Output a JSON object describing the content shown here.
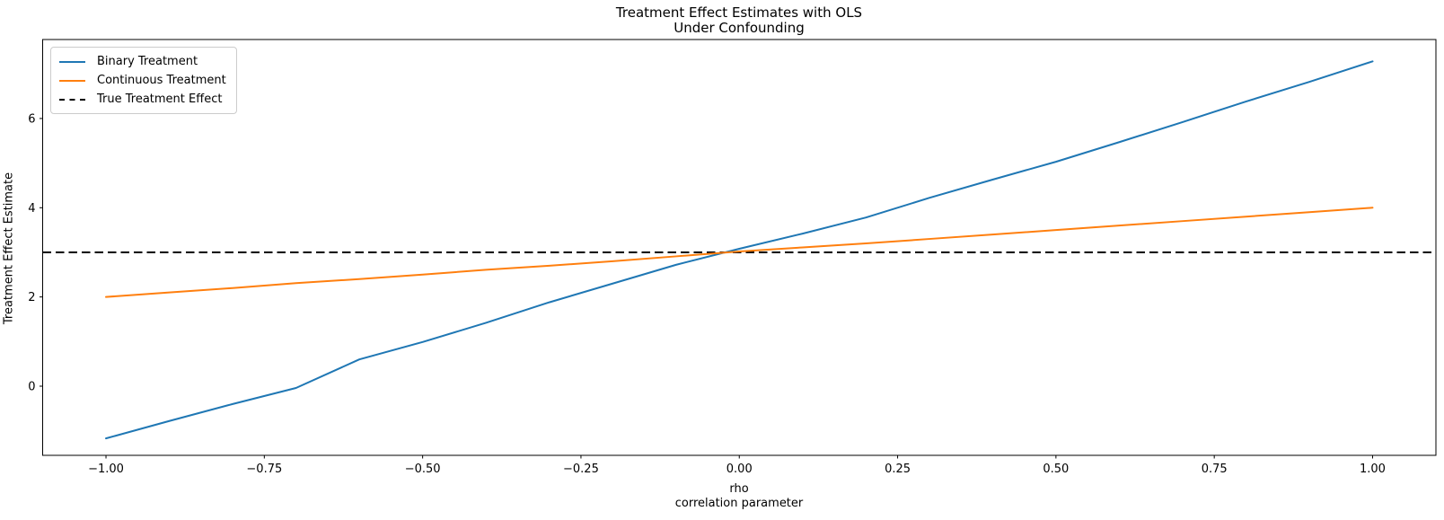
{
  "chart_data": {
    "type": "line",
    "title_line1": "Treatment Effect Estimates with OLS",
    "title_line2": "Under Confounding",
    "xlabel_line1": "rho",
    "xlabel_line2": "correlation parameter",
    "ylabel": "Treatment Effect Estimate",
    "xlim": [
      -1.1,
      1.1
    ],
    "ylim": [
      -1.55,
      7.77
    ],
    "grid": false,
    "legend_position": "upper left",
    "background": "#ffffff",
    "x": [
      -1.0,
      -0.9,
      -0.8,
      -0.7,
      -0.6,
      -0.5,
      -0.4,
      -0.3,
      -0.2,
      -0.1,
      0.0,
      0.1,
      0.2,
      0.3,
      0.4,
      0.5,
      0.6,
      0.7,
      0.8,
      0.9,
      1.0
    ],
    "series": [
      {
        "name": "Binary Treatment",
        "color": "#1f77b4",
        "style": "solid",
        "values": [
          -1.17,
          -0.78,
          -0.4,
          -0.04,
          0.6,
          0.99,
          1.42,
          1.88,
          2.3,
          2.72,
          3.08,
          3.42,
          3.78,
          4.22,
          4.63,
          5.03,
          5.47,
          5.92,
          6.38,
          6.82,
          7.28
        ]
      },
      {
        "name": "Continuous Treatment",
        "color": "#ff7f0e",
        "style": "solid",
        "values": [
          2.0,
          2.1,
          2.2,
          2.31,
          2.4,
          2.5,
          2.61,
          2.7,
          2.8,
          2.91,
          3.02,
          3.11,
          3.2,
          3.3,
          3.4,
          3.5,
          3.6,
          3.7,
          3.8,
          3.9,
          4.0
        ]
      },
      {
        "name": "True Treatment Effect",
        "color": "#000000",
        "style": "dashed",
        "y": 3.0
      }
    ],
    "x_ticks": [
      -1.0,
      -0.75,
      -0.5,
      -0.25,
      0.0,
      0.25,
      0.5,
      0.75,
      1.0
    ],
    "x_tick_labels": [
      "−1.00",
      "−0.75",
      "−0.50",
      "−0.25",
      "0.00",
      "0.25",
      "0.50",
      "0.75",
      "1.00"
    ],
    "y_ticks": [
      0,
      2,
      4,
      6
    ],
    "y_tick_labels": [
      "0",
      "2",
      "4",
      "6"
    ]
  }
}
